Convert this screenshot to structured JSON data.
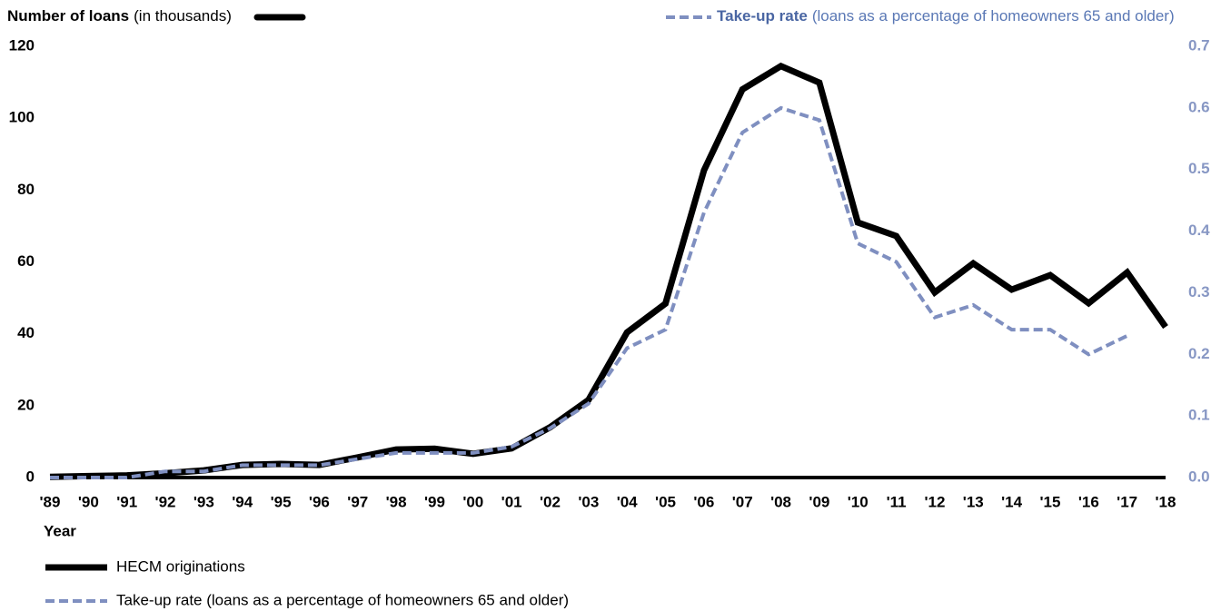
{
  "chart_data": {
    "type": "line",
    "y_axis_title": "Number of loans",
    "y_axis_unit": "(in thousands)",
    "y2_axis_title": "Take-up rate",
    "y2_axis_unit": "(loans as a percentage of homeowners 65 and older)",
    "x_axis_title": "Year",
    "categories": [
      "'89",
      "'90",
      "'91",
      "'92",
      "'93",
      "'94",
      "'95",
      "'96",
      "'97",
      "'98",
      "'99",
      "'00",
      "'01",
      "'02",
      "'03",
      "'04",
      "'05",
      "'06",
      "'07",
      "'08",
      "'09",
      "'10",
      "'11",
      "'12",
      "'13",
      "'14",
      "'15",
      "'16",
      "'17",
      "'18"
    ],
    "series": [
      {
        "name": "HECM originations",
        "color": "#000000",
        "dash": false,
        "values": [
          0.2,
          0.4,
          0.6,
          1.2,
          2.0,
          3.5,
          3.8,
          3.5,
          5.6,
          7.8,
          8.0,
          6.6,
          8.1,
          14,
          21.6,
          40.4,
          48.4,
          85.5,
          108,
          114.5,
          109.9,
          71,
          67.2,
          51.5,
          59.6,
          52.3,
          56.3,
          48.5,
          57.1,
          41.9
        ]
      },
      {
        "name": "Take-up rate (loans as a percentage of homeowners 65 and older)",
        "color": "#7f8fc0",
        "dash": true,
        "axis": "y2",
        "values": [
          0.0,
          0.0,
          0.0,
          0.01,
          0.01,
          0.02,
          0.02,
          0.02,
          0.03,
          0.04,
          0.04,
          0.04,
          0.05,
          0.08,
          0.12,
          0.21,
          0.24,
          0.43,
          0.56,
          0.6,
          0.58,
          0.38,
          0.35,
          0.26,
          0.28,
          0.24,
          0.24,
          0.2,
          0.23,
          null
        ]
      }
    ],
    "ylim": [
      0,
      120
    ],
    "yticks": [
      0,
      20,
      40,
      60,
      80,
      100,
      120
    ],
    "y2lim": [
      0,
      0.7
    ],
    "y2ticks": [
      {
        "value": 0,
        "label": "0.0"
      },
      0.1,
      0.2,
      0.3,
      0.4,
      0.5,
      0.6,
      0.7
    ],
    "grid": false
  }
}
